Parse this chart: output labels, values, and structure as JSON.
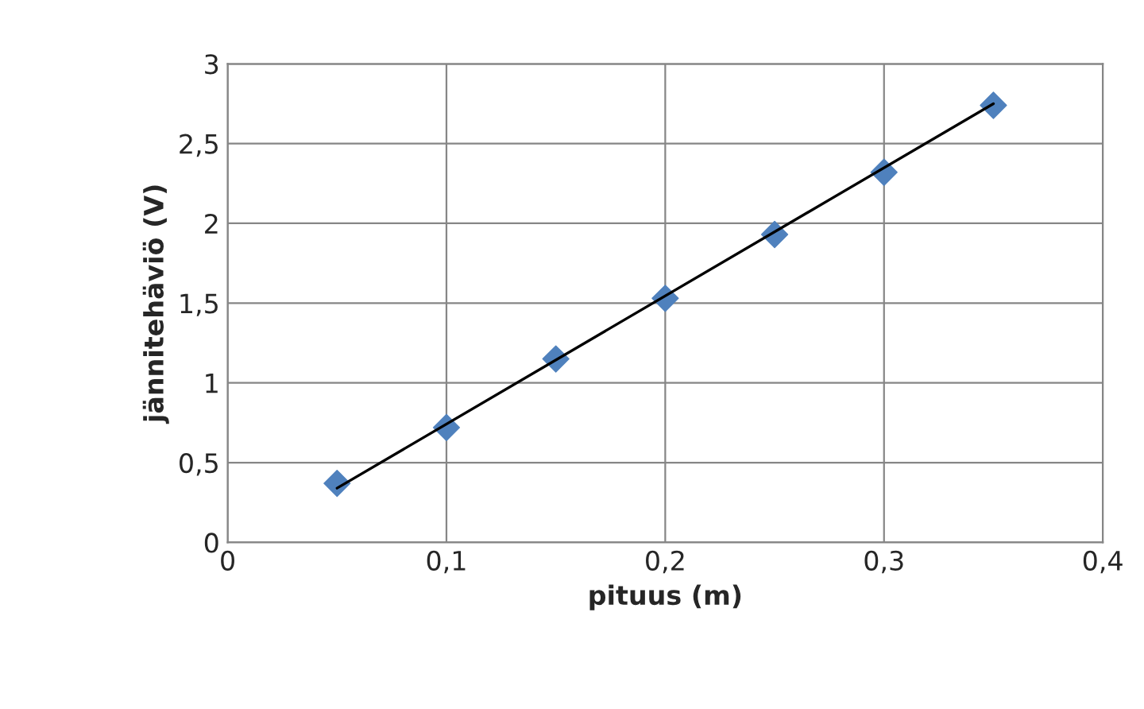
{
  "chart_data": {
    "type": "scatter",
    "xlabel": "pituus (m)",
    "ylabel": "jännitehäviö (V)",
    "x": [
      0.05,
      0.1,
      0.15,
      0.2,
      0.25,
      0.3,
      0.35
    ],
    "series": [
      {
        "color": "#4f81bd",
        "marker": "diamond",
        "values": [
          0.37,
          0.72,
          1.15,
          1.53,
          1.93,
          2.32,
          2.74
        ]
      },
      {
        "type": "line",
        "color": "#000000",
        "marker": "none",
        "line_style": "solid",
        "x": [
          0.05,
          0.35
        ],
        "values": [
          0.34,
          2.75
        ]
      }
    ],
    "xlim": [
      0,
      0.4
    ],
    "ylim": [
      0,
      3
    ],
    "xticks": [
      0,
      {
        "value": 0.1,
        "label": "0,1"
      },
      {
        "value": 0.2,
        "label": "0,2"
      },
      {
        "value": 0.3,
        "label": "0,3"
      },
      {
        "value": 0.4,
        "label": "0,4"
      }
    ],
    "yticks": [
      0,
      {
        "value": 0.5,
        "label": "0,5"
      },
      1,
      {
        "value": 1.5,
        "label": "1,5"
      },
      2,
      {
        "value": 2.5,
        "label": "2,5"
      },
      3
    ],
    "grid": true,
    "legend": false
  }
}
